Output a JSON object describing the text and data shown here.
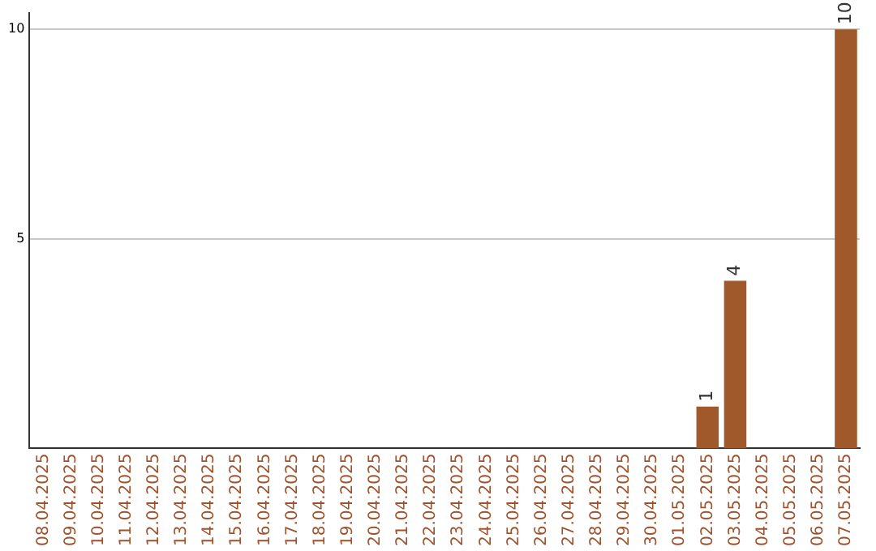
{
  "chart_data": {
    "type": "bar",
    "categories": [
      "08.04.2025",
      "09.04.2025",
      "10.04.2025",
      "11.04.2025",
      "12.04.2025",
      "13.04.2025",
      "14.04.2025",
      "15.04.2025",
      "16.04.2025",
      "17.04.2025",
      "18.04.2025",
      "19.04.2025",
      "20.04.2025",
      "21.04.2025",
      "22.04.2025",
      "23.04.2025",
      "24.04.2025",
      "25.04.2025",
      "26.04.2025",
      "27.04.2025",
      "28.04.2025",
      "29.04.2025",
      "30.04.2025",
      "01.05.2025",
      "02.05.2025",
      "03.05.2025",
      "04.05.2025",
      "05.05.2025",
      "06.05.2025",
      "07.05.2025"
    ],
    "values": [
      0,
      0,
      0,
      0,
      0,
      0,
      0,
      0,
      0,
      0,
      0,
      0,
      0,
      0,
      0,
      0,
      0,
      0,
      0,
      0,
      0,
      0,
      0,
      0,
      1,
      4,
      0,
      0,
      0,
      10
    ],
    "value_labels": [
      null,
      null,
      null,
      null,
      null,
      null,
      null,
      null,
      null,
      null,
      null,
      null,
      null,
      null,
      null,
      null,
      null,
      null,
      null,
      null,
      null,
      null,
      null,
      null,
      "1",
      "4",
      null,
      null,
      null,
      "10"
    ],
    "color": "#a0592b",
    "ylim": [
      0,
      10.4
    ],
    "yticks": [
      5,
      10
    ],
    "grid": "y",
    "legend": false
  }
}
